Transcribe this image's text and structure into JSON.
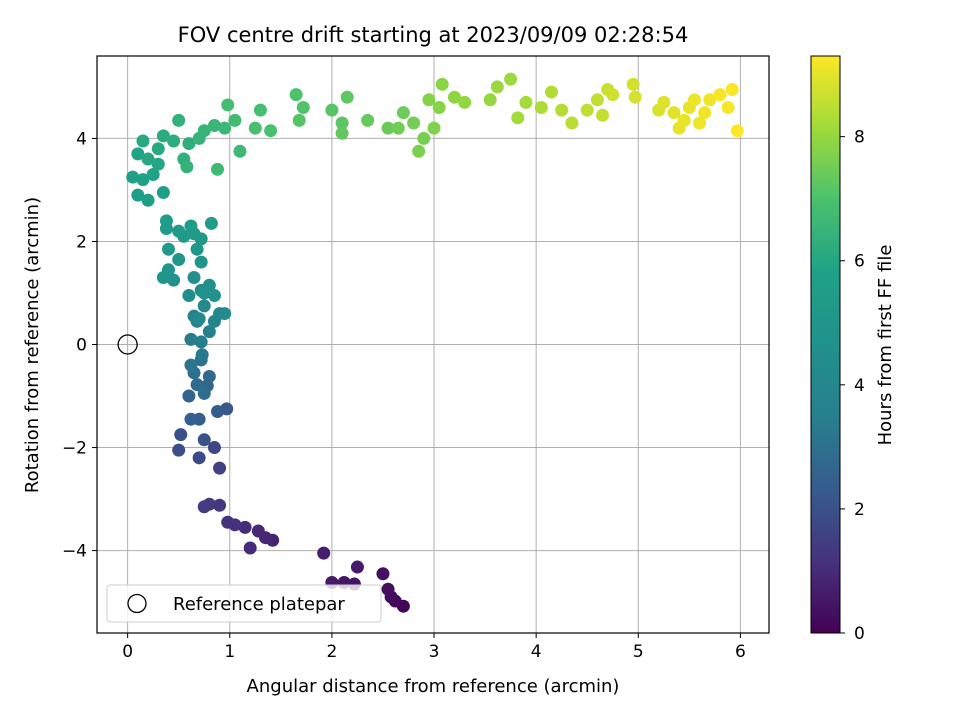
{
  "chart_data": {
    "type": "scatter",
    "title": "FOV centre drift starting at 2023/09/09 02:28:54",
    "xlabel": "Angular distance from reference (arcmin)",
    "ylabel": "Rotation from reference (arcmin)",
    "xlim": [
      -0.3,
      6.28
    ],
    "ylim": [
      -5.6,
      5.6
    ],
    "xticks": [
      0,
      1,
      2,
      3,
      4,
      5,
      6
    ],
    "yticks": [
      -4,
      -2,
      0,
      2,
      4
    ],
    "xtick_labels": [
      "0",
      "1",
      "2",
      "3",
      "4",
      "5",
      "6"
    ],
    "ytick_labels": [
      "−4",
      "−2",
      "0",
      "2",
      "4"
    ],
    "grid": true,
    "legend": {
      "position": "lower-left",
      "entries": [
        {
          "label": "Reference platepar",
          "marker": "open-circle"
        }
      ]
    },
    "reference_point": {
      "x": 0,
      "y": 0
    },
    "colorbar": {
      "label": "Hours from first FF file",
      "colormap": "viridis",
      "range": [
        0,
        9.3
      ],
      "ticks": [
        0,
        2,
        4,
        6,
        8
      ],
      "tick_labels": [
        "0",
        "2",
        "4",
        "6",
        "8"
      ]
    },
    "series": [
      {
        "color_by": "hours",
        "points": [
          [
            2.7,
            -5.08,
            0.1
          ],
          [
            2.62,
            -4.98,
            0.18
          ],
          [
            2.58,
            -4.9,
            0.25
          ],
          [
            2.55,
            -4.75,
            0.3
          ],
          [
            2.5,
            -4.45,
            0.35
          ],
          [
            2.22,
            -4.65,
            0.45
          ],
          [
            2.12,
            -4.62,
            0.5
          ],
          [
            2.0,
            -4.62,
            0.55
          ],
          [
            2.25,
            -4.32,
            0.6
          ],
          [
            1.92,
            -4.05,
            0.7
          ],
          [
            1.42,
            -3.8,
            0.85
          ],
          [
            1.35,
            -3.75,
            0.9
          ],
          [
            1.28,
            -3.62,
            0.95
          ],
          [
            1.2,
            -3.95,
            1.0
          ],
          [
            1.15,
            -3.55,
            1.05
          ],
          [
            1.05,
            -3.5,
            1.15
          ],
          [
            0.98,
            -3.45,
            1.2
          ],
          [
            0.9,
            -3.12,
            1.3
          ],
          [
            0.8,
            -3.1,
            1.4
          ],
          [
            0.75,
            -3.15,
            1.45
          ],
          [
            0.9,
            -2.4,
            1.6
          ],
          [
            0.85,
            -2.0,
            1.7
          ],
          [
            0.7,
            -2.2,
            1.8
          ],
          [
            0.5,
            -2.05,
            1.9
          ],
          [
            0.52,
            -1.75,
            2.0
          ],
          [
            0.75,
            -1.85,
            2.05
          ],
          [
            0.97,
            -1.25,
            2.2
          ],
          [
            0.88,
            -1.3,
            2.3
          ],
          [
            0.7,
            -1.45,
            2.4
          ],
          [
            0.62,
            -1.45,
            2.45
          ],
          [
            0.6,
            -1.0,
            2.55
          ],
          [
            0.78,
            -0.8,
            2.65
          ],
          [
            0.8,
            -0.62,
            2.75
          ],
          [
            0.68,
            -0.78,
            2.8
          ],
          [
            0.75,
            -0.95,
            2.9
          ],
          [
            0.65,
            -0.55,
            3.0
          ],
          [
            0.72,
            -0.3,
            3.1
          ],
          [
            0.62,
            -0.4,
            3.2
          ],
          [
            0.73,
            -0.2,
            3.3
          ],
          [
            0.62,
            0.1,
            3.4
          ],
          [
            0.72,
            0.05,
            3.5
          ],
          [
            0.8,
            0.25,
            3.55
          ],
          [
            0.68,
            0.45,
            3.65
          ],
          [
            0.65,
            0.55,
            3.75
          ],
          [
            0.85,
            0.45,
            3.85
          ],
          [
            0.9,
            0.6,
            3.95
          ],
          [
            0.75,
            0.75,
            4.05
          ],
          [
            0.7,
            0.5,
            4.15
          ],
          [
            0.95,
            0.6,
            4.2
          ],
          [
            0.6,
            0.95,
            4.3
          ],
          [
            0.72,
            1.05,
            4.4
          ],
          [
            0.8,
            1.15,
            4.5
          ],
          [
            0.65,
            1.3,
            4.55
          ],
          [
            0.75,
            1.0,
            4.65
          ],
          [
            0.85,
            0.95,
            4.7
          ],
          [
            0.45,
            1.25,
            4.8
          ],
          [
            0.4,
            1.45,
            4.9
          ],
          [
            0.35,
            1.3,
            4.95
          ],
          [
            0.72,
            1.6,
            5.0
          ],
          [
            0.68,
            1.85,
            5.05
          ],
          [
            0.5,
            1.65,
            5.1
          ],
          [
            0.4,
            1.85,
            5.15
          ],
          [
            0.55,
            2.1,
            5.2
          ],
          [
            0.72,
            2.05,
            5.25
          ],
          [
            0.65,
            2.15,
            5.3
          ],
          [
            0.5,
            2.2,
            5.35
          ],
          [
            0.38,
            2.25,
            5.4
          ],
          [
            0.82,
            2.35,
            5.45
          ],
          [
            0.62,
            2.3,
            5.5
          ],
          [
            0.38,
            2.4,
            5.55
          ],
          [
            0.1,
            2.9,
            5.6
          ],
          [
            0.2,
            2.8,
            5.65
          ],
          [
            0.35,
            2.95,
            5.7
          ],
          [
            0.05,
            3.25,
            5.75
          ],
          [
            0.15,
            3.2,
            5.8
          ],
          [
            0.25,
            3.3,
            5.85
          ],
          [
            0.1,
            3.7,
            5.9
          ],
          [
            0.3,
            3.5,
            5.95
          ],
          [
            0.2,
            3.6,
            6.0
          ],
          [
            0.15,
            3.95,
            6.05
          ],
          [
            0.3,
            3.8,
            6.1
          ],
          [
            0.35,
            4.05,
            6.15
          ],
          [
            0.45,
            3.95,
            6.2
          ],
          [
            0.6,
            3.9,
            6.25
          ],
          [
            0.55,
            3.6,
            6.3
          ],
          [
            0.5,
            4.35,
            6.35
          ],
          [
            0.58,
            3.45,
            6.4
          ],
          [
            0.7,
            4.0,
            6.45
          ],
          [
            0.75,
            4.15,
            6.5
          ],
          [
            0.85,
            4.25,
            6.55
          ],
          [
            0.95,
            4.2,
            6.6
          ],
          [
            1.1,
            3.75,
            6.65
          ],
          [
            0.88,
            3.4,
            6.7
          ],
          [
            1.05,
            4.35,
            6.75
          ],
          [
            0.98,
            4.65,
            6.8
          ],
          [
            1.3,
            4.55,
            6.85
          ],
          [
            1.25,
            4.2,
            6.9
          ],
          [
            1.4,
            4.15,
            6.95
          ],
          [
            1.65,
            4.85,
            7.0
          ],
          [
            1.72,
            4.6,
            7.05
          ],
          [
            1.68,
            4.35,
            7.1
          ],
          [
            2.0,
            4.55,
            7.15
          ],
          [
            2.1,
            4.3,
            7.2
          ],
          [
            2.15,
            4.8,
            7.25
          ],
          [
            2.1,
            4.1,
            7.3
          ],
          [
            2.35,
            4.35,
            7.35
          ],
          [
            2.55,
            4.2,
            7.4
          ],
          [
            2.7,
            4.5,
            7.45
          ],
          [
            2.65,
            4.2,
            7.5
          ],
          [
            2.8,
            4.3,
            7.55
          ],
          [
            2.9,
            4.0,
            7.6
          ],
          [
            2.85,
            3.75,
            7.65
          ],
          [
            3.0,
            4.2,
            7.7
          ],
          [
            2.95,
            4.75,
            7.75
          ],
          [
            3.05,
            4.6,
            7.8
          ],
          [
            3.08,
            5.05,
            7.85
          ],
          [
            3.2,
            4.8,
            7.9
          ],
          [
            3.3,
            4.7,
            7.95
          ],
          [
            3.55,
            4.75,
            8.0
          ],
          [
            3.62,
            5.0,
            8.05
          ],
          [
            3.75,
            5.15,
            8.1
          ],
          [
            3.82,
            4.4,
            8.15
          ],
          [
            3.9,
            4.7,
            8.2
          ],
          [
            4.05,
            4.6,
            8.3
          ],
          [
            4.15,
            4.9,
            8.35
          ],
          [
            4.25,
            4.55,
            8.4
          ],
          [
            4.35,
            4.3,
            8.45
          ],
          [
            4.5,
            4.55,
            8.5
          ],
          [
            4.6,
            4.75,
            8.55
          ],
          [
            4.65,
            4.45,
            8.6
          ],
          [
            4.7,
            4.95,
            8.65
          ],
          [
            4.75,
            4.85,
            8.7
          ],
          [
            4.95,
            5.05,
            8.75
          ],
          [
            4.97,
            4.8,
            8.8
          ],
          [
            5.2,
            4.55,
            8.85
          ],
          [
            5.25,
            4.7,
            8.9
          ],
          [
            5.35,
            4.5,
            8.95
          ],
          [
            5.4,
            4.2,
            9.0
          ],
          [
            5.45,
            4.35,
            9.05
          ],
          [
            5.5,
            4.6,
            9.05
          ],
          [
            5.55,
            4.75,
            9.1
          ],
          [
            5.6,
            4.3,
            9.1
          ],
          [
            5.65,
            4.5,
            9.15
          ],
          [
            5.7,
            4.75,
            9.15
          ],
          [
            5.8,
            4.85,
            9.2
          ],
          [
            5.88,
            4.6,
            9.2
          ],
          [
            5.92,
            4.95,
            9.25
          ],
          [
            5.97,
            4.15,
            9.3
          ]
        ]
      }
    ]
  }
}
